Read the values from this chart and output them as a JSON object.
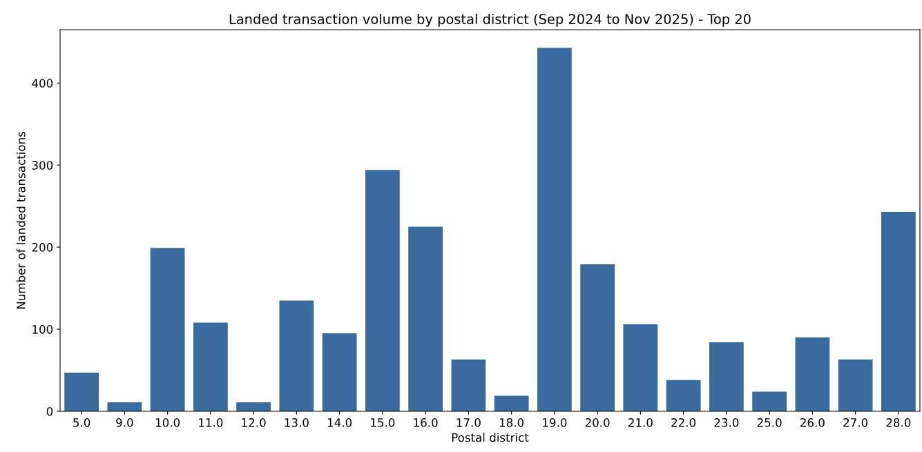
{
  "chart_data": {
    "type": "bar",
    "title": "Landed transaction volume by postal district (Sep 2024 to Nov 2025) - Top 20",
    "xlabel": "Postal district",
    "ylabel": "Number of landed transactions",
    "categories": [
      "5.0",
      "9.0",
      "10.0",
      "11.0",
      "12.0",
      "13.0",
      "14.0",
      "15.0",
      "16.0",
      "17.0",
      "18.0",
      "19.0",
      "20.0",
      "21.0",
      "22.0",
      "23.0",
      "25.0",
      "26.0",
      "27.0",
      "28.0"
    ],
    "values": [
      47,
      11,
      199,
      108,
      11,
      135,
      95,
      294,
      225,
      63,
      19,
      443,
      179,
      106,
      38,
      84,
      24,
      90,
      63,
      243
    ],
    "color": "#3a6b9f",
    "ylim": [
      0,
      465
    ],
    "yticks": [
      0,
      100,
      200,
      300,
      400
    ],
    "grid": false,
    "legend": false
  }
}
